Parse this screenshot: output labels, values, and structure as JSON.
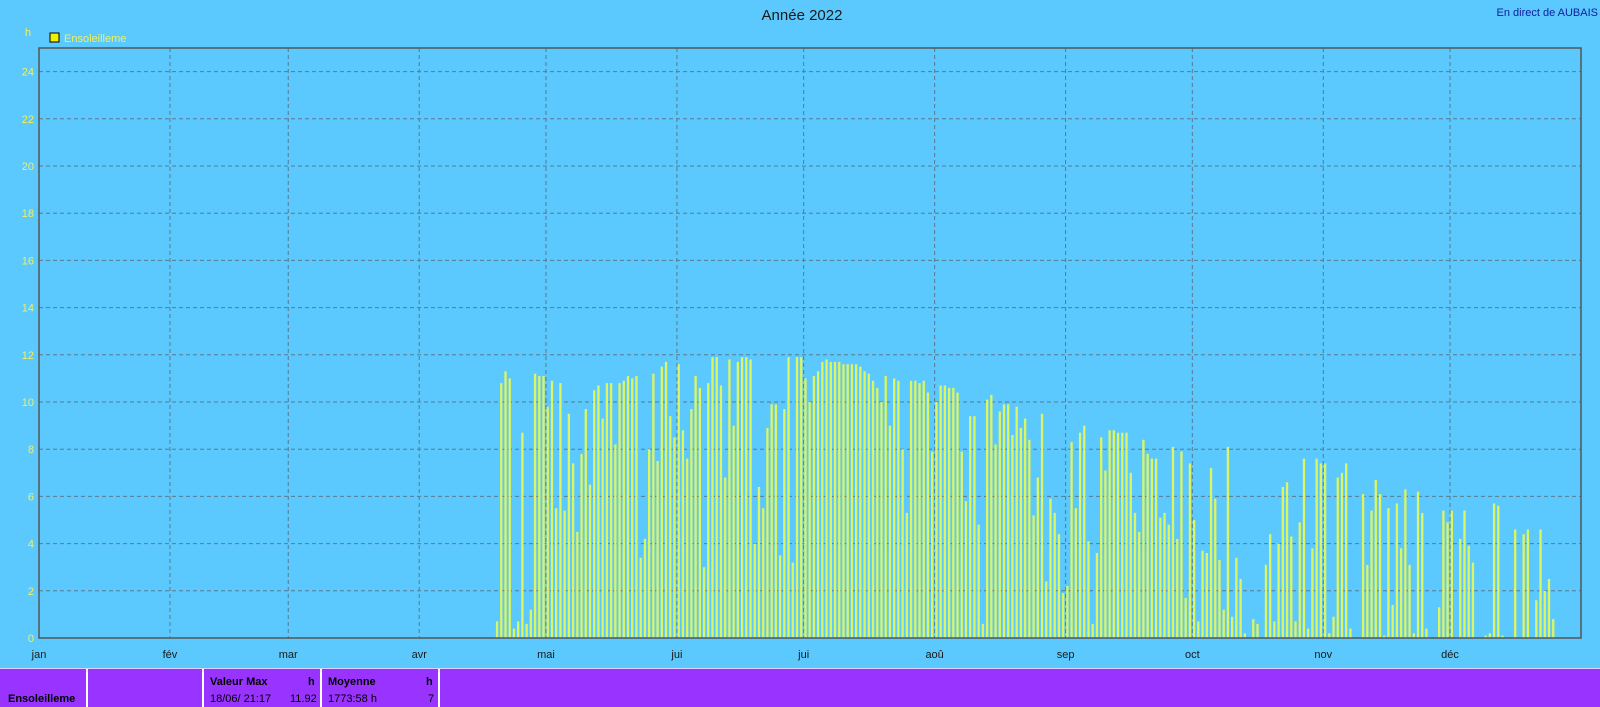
{
  "title": "Année 2022",
  "station": "En direct de AUBAIS",
  "y_unit": "h",
  "colors": {
    "background": "#5bc8fe",
    "bar": "#ddf560",
    "legend_swatch": "#f0f000",
    "stats_background": "#9933ff",
    "grid": "#5a7a90"
  },
  "chart_data": {
    "type": "bar",
    "title": "Année 2022",
    "xlabel": "",
    "ylabel": "h",
    "ylim": [
      0,
      25
    ],
    "yticks": [
      0,
      2,
      4,
      6,
      8,
      10,
      12,
      14,
      16,
      18,
      20,
      22,
      24
    ],
    "x_months": [
      "jan",
      "fév",
      "mar",
      "avr",
      "mai",
      "jui",
      "jui",
      "aoû",
      "sep",
      "oct",
      "nov",
      "déc"
    ],
    "grid": true,
    "legend_position": "top-left",
    "series": [
      {
        "name": "Ensoleilleme",
        "start_date": "2022-04-19",
        "values": [
          0.7,
          10.8,
          11.3,
          11.0,
          0.4,
          0.7,
          8.7,
          0.6,
          1.2,
          11.2,
          11.1,
          11.1,
          9.8,
          10.9,
          5.5,
          10.8,
          5.4,
          9.5,
          7.4,
          4.5,
          7.8,
          9.7,
          6.5,
          10.5,
          10.7,
          9.3,
          10.8,
          10.8,
          8.2,
          10.8,
          10.9,
          11.1,
          11.0,
          11.1,
          3.4,
          4.2,
          8.0,
          11.2,
          7.5,
          11.5,
          11.7,
          9.4,
          8.5,
          11.6,
          8.8,
          7.6,
          9.7,
          11.1,
          10.6,
          3.0,
          10.8,
          11.9,
          11.9,
          10.7,
          6.8,
          11.8,
          9.0,
          11.7,
          11.9,
          11.9,
          11.8,
          4.0,
          6.4,
          5.5,
          8.9,
          9.9,
          9.9,
          3.5,
          9.7,
          11.9,
          3.2,
          11.9,
          11.9,
          11.0,
          10.0,
          11.1,
          11.3,
          11.7,
          11.8,
          11.7,
          11.7,
          11.7,
          11.6,
          11.6,
          11.6,
          11.6,
          11.5,
          11.3,
          11.2,
          10.9,
          10.6,
          10.0,
          11.1,
          9.0,
          11.0,
          10.9,
          8.0,
          5.3,
          10.9,
          10.9,
          10.8,
          10.9,
          10.4,
          7.9,
          10.0,
          10.7,
          10.7,
          10.6,
          10.6,
          10.4,
          7.9,
          5.8,
          9.4,
          9.4,
          4.8,
          0.6,
          10.1,
          10.3,
          8.2,
          9.6,
          9.9,
          9.9,
          8.6,
          9.8,
          8.9,
          9.3,
          8.4,
          5.2,
          6.8,
          9.5,
          2.4,
          5.9,
          5.3,
          4.4,
          1.9,
          2.2,
          8.3,
          5.5,
          8.7,
          9.0,
          4.1,
          0.6,
          3.6,
          8.5,
          7.1,
          8.8,
          8.8,
          8.7,
          8.7,
          8.7,
          7.0,
          5.3,
          4.5,
          8.4,
          7.8,
          7.6,
          7.6,
          5.1,
          5.3,
          4.8,
          8.1,
          4.2,
          7.9,
          1.7,
          7.4,
          5.0,
          0.7,
          3.7,
          3.6,
          7.2,
          5.9,
          3.3,
          1.2,
          8.1,
          0.9,
          3.4,
          2.5,
          0.2,
          0.0,
          0.8,
          0.6,
          0.0,
          3.1,
          4.4,
          0.7,
          4.0,
          6.4,
          6.6,
          4.3,
          0.7,
          4.9,
          7.6,
          0.4,
          3.8,
          7.6,
          7.4,
          7.4,
          0.2,
          0.9,
          6.8,
          7.0,
          7.4,
          0.4,
          0.0,
          0.0,
          6.1,
          3.1,
          5.4,
          6.7,
          6.1,
          0.1,
          5.5,
          1.4,
          5.7,
          3.8,
          6.3,
          3.1,
          0.2,
          6.2,
          5.3,
          0.4,
          0.0,
          0.0,
          1.3,
          5.4,
          4.9,
          5.4,
          0.0,
          4.2,
          5.4,
          3.9,
          3.2,
          0.0,
          0.0,
          0.1,
          0.2,
          5.7,
          5.6,
          0.1,
          0.0,
          0.0,
          4.6,
          0.0,
          4.4,
          4.6,
          0.0,
          1.6,
          4.6,
          2.0,
          2.5,
          0.8
        ]
      }
    ]
  },
  "stats": {
    "series_name": "Ensoleilleme",
    "max": {
      "header": "Valeur Max",
      "unit": "h",
      "value_text": "18/06/  21:17",
      "value": "11.92"
    },
    "mean": {
      "header": "Moyenne",
      "unit": "h",
      "value_text": "1773:58 h",
      "value": "7"
    }
  }
}
